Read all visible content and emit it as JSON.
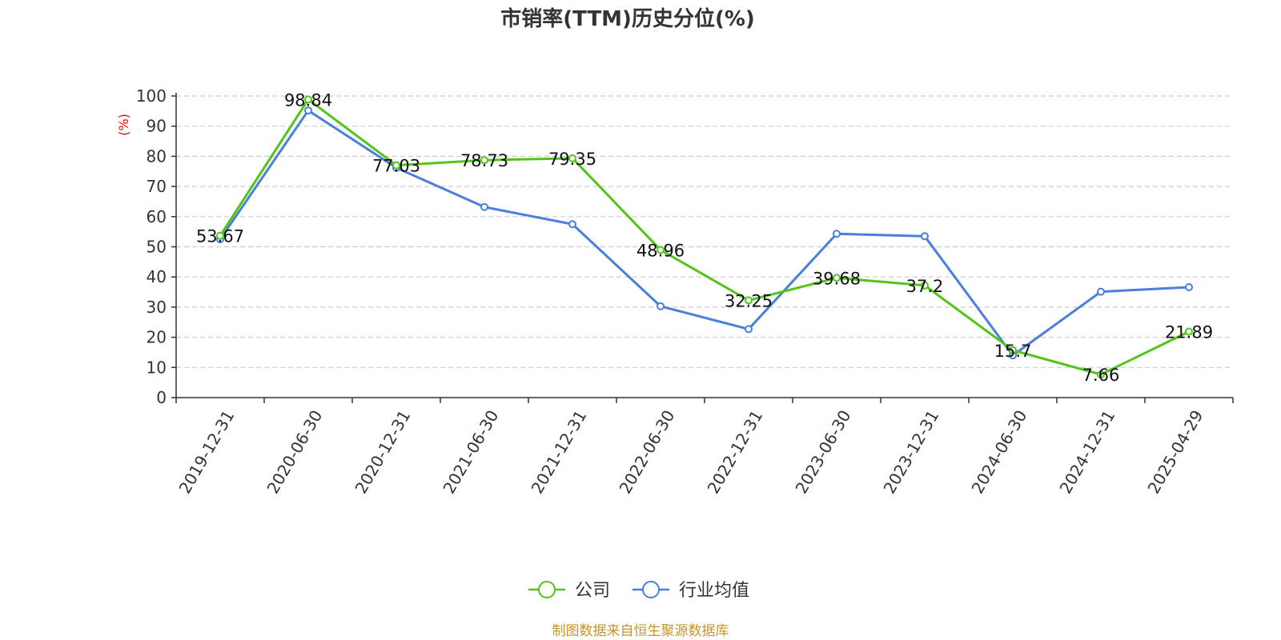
{
  "chart_data": {
    "type": "line",
    "title": "市销率(TTM)历史分位(%)",
    "ylabel": "(%)",
    "ylim": [
      0,
      100
    ],
    "yticks": [
      0,
      10,
      20,
      30,
      40,
      50,
      60,
      70,
      80,
      90,
      100
    ],
    "grid": true,
    "legend_position": "bottom-center",
    "categories": [
      "2019-12-31",
      "2020-06-30",
      "2020-12-31",
      "2021-06-30",
      "2021-12-31",
      "2022-06-30",
      "2022-12-31",
      "2023-06-30",
      "2023-12-31",
      "2024-06-30",
      "2024-12-31",
      "2025-04-29"
    ],
    "series": [
      {
        "name": "公司",
        "color": "#52c41a",
        "values": [
          53.67,
          98.84,
          77.03,
          78.73,
          79.35,
          48.96,
          32.25,
          39.68,
          37.2,
          15.7,
          7.66,
          21.89
        ],
        "labels": [
          "53.67",
          "98.84",
          "77.03",
          "78.73",
          "79.35",
          "48.96",
          "32.25",
          "39.68",
          "37.2",
          "15.7",
          "7.66",
          "21.89"
        ]
      },
      {
        "name": "行业均值",
        "color": "#4a7fdc",
        "values": [
          52.5,
          95.2,
          76.2,
          63.2,
          57.5,
          30.3,
          22.7,
          54.3,
          53.5,
          14.0,
          35.1,
          36.6
        ]
      }
    ],
    "source": "制图数据来自恒生聚源数据库"
  }
}
